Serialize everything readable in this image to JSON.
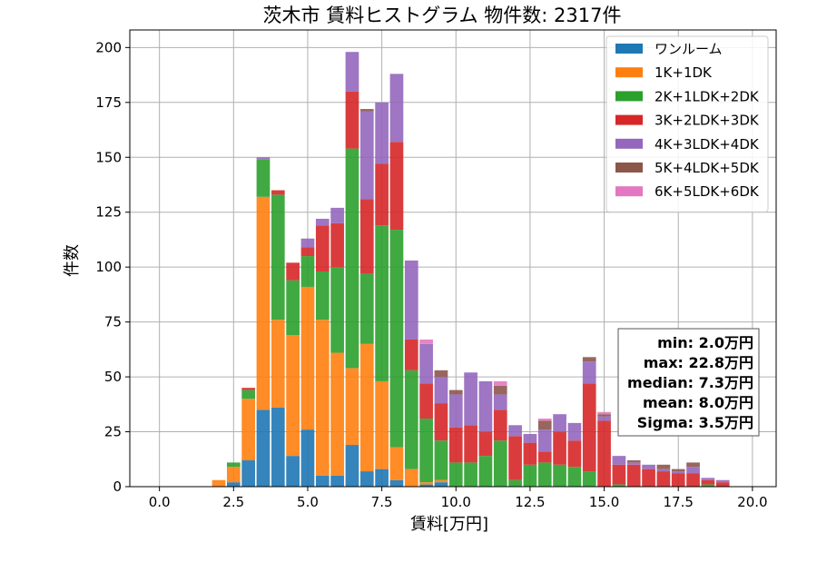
{
  "chart_data": {
    "type": "bar",
    "stacked": true,
    "title": "茨木市 賃料ヒストグラム  物件数: 2317件",
    "xlabel": "賃料[万円]",
    "ylabel": "件数",
    "xlim": [
      -1.0,
      20.8
    ],
    "ylim": [
      0,
      208
    ],
    "xticks": [
      0.0,
      2.5,
      5.0,
      7.5,
      10.0,
      12.5,
      15.0,
      17.5,
      20.0
    ],
    "xtick_labels": [
      "0.0",
      "2.5",
      "5.0",
      "7.5",
      "10.0",
      "12.5",
      "15.0",
      "17.5",
      "20.0"
    ],
    "yticks": [
      0,
      25,
      50,
      75,
      100,
      125,
      150,
      175,
      200
    ],
    "ytick_labels": [
      "0",
      "25",
      "50",
      "75",
      "100",
      "125",
      "150",
      "175",
      "200"
    ],
    "grid": true,
    "legend_position": "top-right",
    "bin_width": 0.5,
    "x": [
      2.0,
      2.5,
      3.0,
      3.5,
      4.0,
      4.5,
      5.0,
      5.5,
      6.0,
      6.5,
      7.0,
      7.5,
      8.0,
      8.5,
      9.0,
      9.5,
      10.0,
      10.5,
      11.0,
      11.5,
      12.0,
      12.5,
      13.0,
      13.5,
      14.0,
      14.5,
      15.0,
      15.5,
      16.0,
      16.5,
      17.0,
      17.5,
      18.0,
      18.5,
      19.0
    ],
    "series": [
      {
        "name": "ワンルーム",
        "color": "#1f77b4",
        "values": [
          0,
          2,
          12,
          35,
          36,
          14,
          26,
          5,
          5,
          19,
          7,
          8,
          3,
          0,
          1,
          2,
          0,
          0,
          0,
          0,
          0,
          0,
          0,
          0,
          0,
          0,
          0,
          0,
          0,
          0,
          0,
          0,
          0,
          0,
          0
        ]
      },
      {
        "name": "1K+1DK",
        "color": "#ff7f0e",
        "values": [
          3,
          7,
          28,
          97,
          40,
          55,
          65,
          71,
          56,
          35,
          58,
          40,
          15,
          8,
          1,
          1,
          0,
          0,
          0,
          0,
          0,
          0,
          0,
          0,
          0,
          0,
          0,
          0,
          0,
          0,
          0,
          0,
          0,
          0,
          0
        ]
      },
      {
        "name": "2K+1LDK+2DK",
        "color": "#2ca02c",
        "values": [
          0,
          2,
          4,
          17,
          57,
          25,
          14,
          22,
          39,
          100,
          32,
          71,
          99,
          45,
          29,
          18,
          11,
          11,
          14,
          21,
          3,
          10,
          11,
          10,
          9,
          7,
          0,
          1,
          0,
          0,
          0,
          0,
          0,
          1,
          0
        ]
      },
      {
        "name": "3K+2LDK+3DK",
        "color": "#d62728",
        "values": [
          0,
          0,
          1,
          0,
          2,
          8,
          4,
          21,
          20,
          26,
          34,
          28,
          40,
          14,
          16,
          17,
          16,
          17,
          11,
          14,
          20,
          10,
          5,
          15,
          12,
          40,
          30,
          9,
          10,
          8,
          7,
          6,
          6,
          2,
          2
        ]
      },
      {
        "name": "4K+3LDK+4DK",
        "color": "#9467bd",
        "values": [
          0,
          0,
          0,
          1,
          0,
          0,
          4,
          3,
          7,
          18,
          40,
          28,
          31,
          36,
          18,
          12,
          15,
          24,
          23,
          7,
          5,
          4,
          10,
          8,
          8,
          10,
          2,
          4,
          1,
          2,
          1,
          1,
          3,
          1,
          1
        ]
      },
      {
        "name": "5K+4LDK+5DK",
        "color": "#8c564b",
        "values": [
          0,
          0,
          0,
          0,
          0,
          0,
          0,
          0,
          0,
          0,
          1,
          0,
          0,
          0,
          0,
          3,
          2,
          0,
          0,
          4,
          0,
          0,
          4,
          0,
          0,
          2,
          1,
          0,
          1,
          0,
          2,
          1,
          2,
          0,
          0
        ]
      },
      {
        "name": "6K+5LDK+6DK",
        "color": "#e377c2",
        "values": [
          0,
          0,
          0,
          0,
          0,
          0,
          0,
          0,
          0,
          0,
          0,
          0,
          0,
          0,
          2,
          0,
          0,
          0,
          0,
          2,
          0,
          0,
          1,
          0,
          0,
          0,
          1,
          0,
          0,
          0,
          0,
          0,
          0,
          0,
          0
        ]
      }
    ],
    "stats_box": {
      "position": "right-middle",
      "lines": [
        "min: 2.0万円",
        "max: 22.8万円",
        "median: 7.3万円",
        "mean: 8.0万円",
        "Sigma: 3.5万円"
      ]
    }
  }
}
